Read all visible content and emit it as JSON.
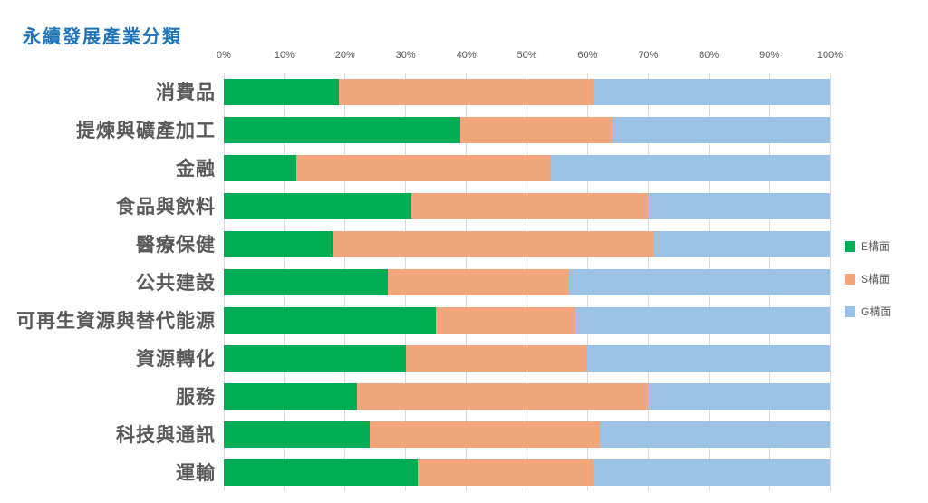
{
  "title": "永續發展產業分類",
  "colors": {
    "title_text": "#1E73B8",
    "axis_text": "#595959",
    "category_text": "#595959",
    "gridline": "#D9D9D9",
    "series_e": "#00AD55",
    "series_s": "#F1A77B",
    "series_g": "#9CC3E6",
    "background": "#FFFFFF"
  },
  "legend": {
    "items": [
      {
        "label": "E構面",
        "color": "#00AD55"
      },
      {
        "label": "S構面",
        "color": "#F1A77B"
      },
      {
        "label": "G構面",
        "color": "#9CC3E6"
      }
    ]
  },
  "chart_data": {
    "type": "bar",
    "orientation": "horizontal",
    "stacked": true,
    "title": "永續發展產業分類",
    "xlabel": "",
    "ylabel": "",
    "xlim": [
      0,
      100
    ],
    "x_ticks": [
      "0%",
      "10%",
      "20%",
      "30%",
      "40%",
      "50%",
      "60%",
      "70%",
      "80%",
      "90%",
      "100%"
    ],
    "grid": true,
    "legend_position": "right",
    "categories": [
      "消費品",
      "提煉與礦產加工",
      "金融",
      "食品與飲料",
      "醫療保健",
      "公共建設",
      "可再生資源與替代能源",
      "資源轉化",
      "服務",
      "科技與通訊",
      "運輸"
    ],
    "series": [
      {
        "name": "E構面",
        "color": "#00AD55",
        "values": [
          19,
          39,
          12,
          31,
          18,
          27,
          35,
          30,
          22,
          24,
          32
        ]
      },
      {
        "name": "S構面",
        "color": "#F1A77B",
        "values": [
          42,
          25,
          42,
          39,
          53,
          30,
          23,
          30,
          48,
          38,
          29
        ]
      },
      {
        "name": "G構面",
        "color": "#9CC3E6",
        "values": [
          39,
          36,
          46,
          30,
          29,
          43,
          42,
          40,
          30,
          38,
          39
        ]
      }
    ]
  }
}
